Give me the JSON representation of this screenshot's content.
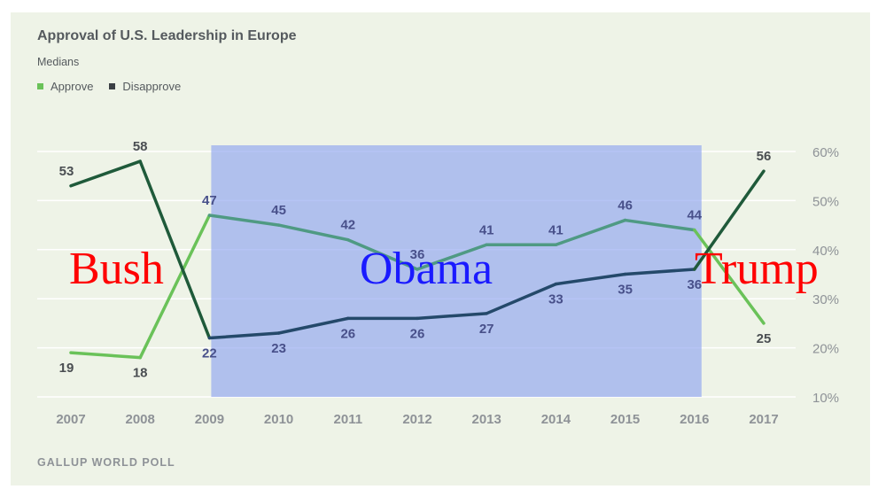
{
  "chart_data": {
    "type": "line",
    "title": "Approval of U.S. Leadership in Europe",
    "subtitle": "Medians",
    "categories": [
      "2007",
      "2008",
      "2009",
      "2010",
      "2011",
      "2012",
      "2013",
      "2014",
      "2015",
      "2016",
      "2017"
    ],
    "series": [
      {
        "name": "Approve",
        "values": [
          19,
          18,
          47,
          45,
          42,
          36,
          41,
          41,
          46,
          44,
          25
        ]
      },
      {
        "name": "Disapprove",
        "values": [
          53,
          58,
          22,
          23,
          26,
          26,
          27,
          33,
          35,
          36,
          56
        ]
      }
    ],
    "y_ticks": [
      "10%",
      "20%",
      "30%",
      "40%",
      "50%",
      "60%"
    ],
    "ylim": [
      10,
      60
    ],
    "grid": true,
    "legend": "top-left",
    "source": "GALLUP WORLD POLL",
    "highlight": {
      "from": "2009",
      "to": "2016",
      "color": "#8fa5ef"
    },
    "annotations": [
      {
        "text": "Bush",
        "color": "#ff0000",
        "at": "2008"
      },
      {
        "text": "Obama",
        "color": "#1a1aff",
        "at": "2012"
      },
      {
        "text": "Trump",
        "color": "#ff0000",
        "at": "2017"
      }
    ],
    "colors": {
      "approve_outside": "#6ac259",
      "approve_inside": "#4f9a83",
      "disapprove_outside": "#1f5a3a",
      "disapprove_inside": "#24496a",
      "label_outside": "#4a4e52",
      "label_inside": "#48508a",
      "tick": "#8e9297",
      "grid": "#ffffff"
    }
  }
}
